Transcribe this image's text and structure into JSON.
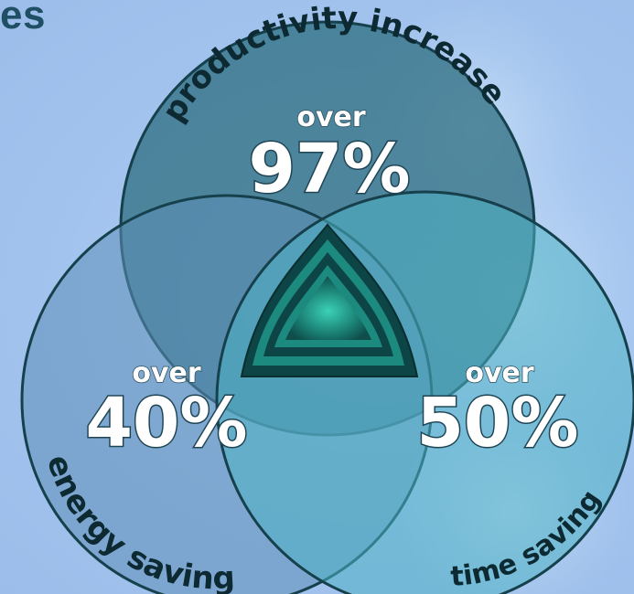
{
  "title_fragment": "es",
  "sets": [
    {
      "label": "productivity increase",
      "prefix": "over",
      "value": "97%"
    },
    {
      "label": "energy saving",
      "prefix": "over",
      "value": "40%"
    },
    {
      "label": "time saving",
      "prefix": "over",
      "value": "50%"
    }
  ],
  "colors": {
    "background": "#a8c8f0",
    "circle_top": "#2e6d80",
    "circle_left": "#5e8fb8",
    "circle_right": "#4fb2c4",
    "outline": "#16414c",
    "center_mark": "#1f6e6b"
  }
}
